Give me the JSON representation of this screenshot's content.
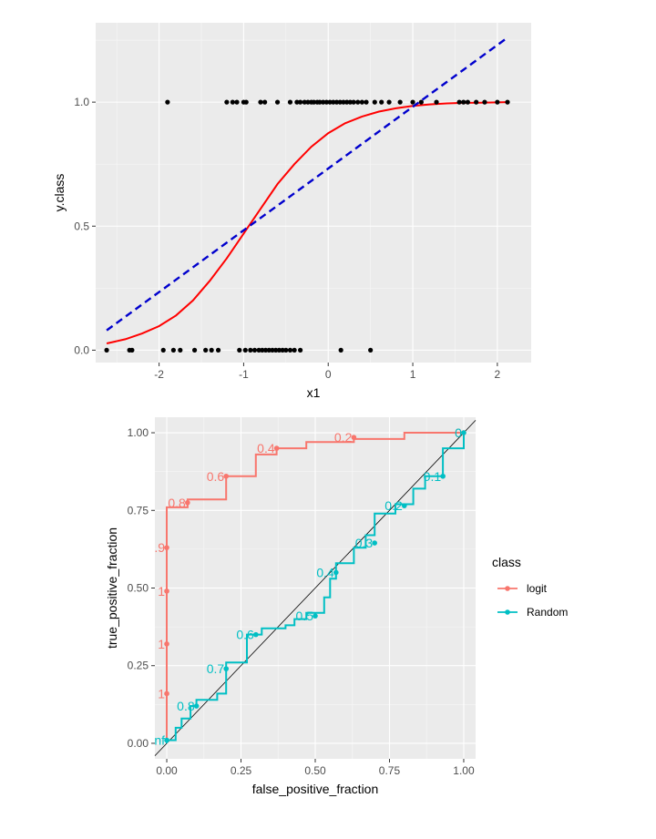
{
  "chart_data": [
    {
      "type": "scatter",
      "xlabel": "x1",
      "ylabel": "y.class",
      "xlim": [
        -2.75,
        2.4
      ],
      "ylim": [
        -0.05,
        1.32
      ],
      "x_ticks": [
        -2,
        -1,
        0,
        1,
        2
      ],
      "x_tick_labels": [
        "-2",
        "-1",
        "0",
        "1",
        "2"
      ],
      "y_ticks": [
        0,
        0.5,
        1
      ],
      "y_tick_labels": [
        "0.0",
        "0.5",
        "1.0"
      ],
      "grid": true,
      "points": {
        "color": "#000000",
        "class1_x": [
          -1.9,
          -1.2,
          -1.13,
          -1.08,
          -1.0,
          -0.97,
          -0.8,
          -0.75,
          -0.6,
          -0.45,
          -0.37,
          -0.33,
          -0.28,
          -0.24,
          -0.2,
          -0.17,
          -0.13,
          -0.1,
          -0.06,
          -0.02,
          0.02,
          0.06,
          0.1,
          0.14,
          0.18,
          0.22,
          0.26,
          0.3,
          0.35,
          0.4,
          0.45,
          0.55,
          0.63,
          0.72,
          0.85,
          1.0,
          1.1,
          1.28,
          1.55,
          1.6,
          1.65,
          1.75,
          1.85,
          2.0,
          2.12
        ],
        "class0_x": [
          -2.62,
          -2.35,
          -2.32,
          -1.95,
          -1.83,
          -1.75,
          -1.58,
          -1.45,
          -1.38,
          -1.3,
          -1.05,
          -0.98,
          -0.92,
          -0.87,
          -0.82,
          -0.78,
          -0.74,
          -0.7,
          -0.66,
          -0.62,
          -0.58,
          -0.54,
          -0.5,
          -0.45,
          -0.4,
          -0.33,
          0.15,
          0.5
        ]
      },
      "series": [
        {
          "type": "line",
          "color": "#ff0000",
          "style": "solid",
          "x": [
            -2.62,
            -2.4,
            -2.2,
            -2.0,
            -1.8,
            -1.6,
            -1.4,
            -1.2,
            -1.0,
            -0.8,
            -0.6,
            -0.4,
            -0.2,
            0.0,
            0.2,
            0.4,
            0.6,
            0.8,
            1.0,
            1.2,
            1.4,
            1.6,
            1.8,
            2.0,
            2.12
          ],
          "y": [
            0.027,
            0.044,
            0.067,
            0.097,
            0.14,
            0.2,
            0.28,
            0.37,
            0.47,
            0.57,
            0.67,
            0.75,
            0.82,
            0.875,
            0.915,
            0.942,
            0.962,
            0.975,
            0.985,
            0.991,
            0.995,
            0.997,
            0.998,
            0.999,
            1.0
          ]
        },
        {
          "type": "line",
          "color": "#0000cd",
          "style": "dashed",
          "x": [
            -2.62,
            2.12
          ],
          "y": [
            0.08,
            1.26
          ]
        }
      ]
    },
    {
      "type": "line",
      "title": "",
      "xlabel": "false_positive_fraction",
      "ylabel": "true_positive_fraction",
      "xlim": [
        -0.04,
        1.04
      ],
      "ylim": [
        -0.05,
        1.05
      ],
      "x_ticks": [
        0,
        0.25,
        0.5,
        0.75,
        1.0
      ],
      "x_tick_labels": [
        "0.00",
        "0.25",
        "0.50",
        "0.75",
        "1.00"
      ],
      "y_ticks": [
        0,
        0.25,
        0.5,
        0.75,
        1.0
      ],
      "y_tick_labels": [
        "0.00",
        "0.25",
        "0.50",
        "0.75",
        "1.00"
      ],
      "grid": true,
      "legend": {
        "title": "class",
        "position": "right"
      },
      "diagonal": {
        "x": [
          -0.04,
          1.04
        ],
        "y": [
          -0.04,
          1.04
        ],
        "color": "#000000"
      },
      "series": [
        {
          "name": "logit",
          "color": "#f8766d",
          "step_points": [
            [
              0,
              0
            ],
            [
              0,
              0.16
            ],
            [
              0,
              0.32
            ],
            [
              0,
              0.47
            ],
            [
              0,
              0.63
            ],
            [
              0,
              0.76
            ],
            [
              0.07,
              0.76
            ],
            [
              0.07,
              0.785
            ],
            [
              0.2,
              0.785
            ],
            [
              0.2,
              0.86
            ],
            [
              0.3,
              0.86
            ],
            [
              0.3,
              0.93
            ],
            [
              0.37,
              0.93
            ],
            [
              0.37,
              0.95
            ],
            [
              0.47,
              0.95
            ],
            [
              0.47,
              0.97
            ],
            [
              0.63,
              0.97
            ],
            [
              0.63,
              0.98
            ],
            [
              0.8,
              0.98
            ],
            [
              0.8,
              1.0
            ],
            [
              1.0,
              1.0
            ]
          ],
          "cut_points": [
            {
              "x": 0,
              "y": 0.16,
              "label": "1"
            },
            {
              "x": 0,
              "y": 0.32,
              "label": "1"
            },
            {
              "x": 0,
              "y": 0.49,
              "label": "1"
            },
            {
              "x": 0,
              "y": 0.63,
              "label": ".9"
            },
            {
              "x": 0.07,
              "y": 0.775,
              "label": "0.8"
            },
            {
              "x": 0.2,
              "y": 0.86,
              "label": "0.6"
            },
            {
              "x": 0.37,
              "y": 0.95,
              "label": "0.4"
            },
            {
              "x": 0.63,
              "y": 0.985,
              "label": "0.2"
            },
            {
              "x": 1.0,
              "y": 1.0,
              "label": "0"
            }
          ]
        },
        {
          "name": "Random",
          "color": "#00bfc4",
          "step_points": [
            [
              0,
              0
            ],
            [
              0,
              0.01
            ],
            [
              0.03,
              0.01
            ],
            [
              0.03,
              0.05
            ],
            [
              0.05,
              0.05
            ],
            [
              0.05,
              0.08
            ],
            [
              0.08,
              0.08
            ],
            [
              0.08,
              0.12
            ],
            [
              0.1,
              0.12
            ],
            [
              0.1,
              0.14
            ],
            [
              0.17,
              0.14
            ],
            [
              0.17,
              0.16
            ],
            [
              0.2,
              0.16
            ],
            [
              0.2,
              0.26
            ],
            [
              0.27,
              0.26
            ],
            [
              0.27,
              0.35
            ],
            [
              0.32,
              0.35
            ],
            [
              0.32,
              0.37
            ],
            [
              0.4,
              0.37
            ],
            [
              0.4,
              0.38
            ],
            [
              0.43,
              0.38
            ],
            [
              0.43,
              0.4
            ],
            [
              0.47,
              0.4
            ],
            [
              0.47,
              0.42
            ],
            [
              0.53,
              0.42
            ],
            [
              0.53,
              0.47
            ],
            [
              0.55,
              0.47
            ],
            [
              0.55,
              0.53
            ],
            [
              0.57,
              0.53
            ],
            [
              0.57,
              0.58
            ],
            [
              0.63,
              0.58
            ],
            [
              0.63,
              0.63
            ],
            [
              0.67,
              0.63
            ],
            [
              0.67,
              0.67
            ],
            [
              0.7,
              0.67
            ],
            [
              0.7,
              0.74
            ],
            [
              0.77,
              0.74
            ],
            [
              0.77,
              0.77
            ],
            [
              0.83,
              0.77
            ],
            [
              0.83,
              0.82
            ],
            [
              0.87,
              0.82
            ],
            [
              0.87,
              0.86
            ],
            [
              0.93,
              0.86
            ],
            [
              0.93,
              0.95
            ],
            [
              1.0,
              0.95
            ],
            [
              1.0,
              1.0
            ]
          ],
          "cut_points": [
            {
              "x": 0,
              "y": 0.01,
              "label": "nf"
            },
            {
              "x": 0.1,
              "y": 0.12,
              "label": "0.8"
            },
            {
              "x": 0.2,
              "y": 0.24,
              "label": "0.7"
            },
            {
              "x": 0.3,
              "y": 0.35,
              "label": "0.6"
            },
            {
              "x": 0.5,
              "y": 0.41,
              "label": "0.5"
            },
            {
              "x": 0.57,
              "y": 0.55,
              "label": "0.4"
            },
            {
              "x": 0.7,
              "y": 0.645,
              "label": "0.3"
            },
            {
              "x": 0.8,
              "y": 0.765,
              "label": "0.2"
            },
            {
              "x": 0.93,
              "y": 0.86,
              "label": "0.1"
            },
            {
              "x": 1.0,
              "y": 1.0,
              "label": "0"
            }
          ]
        }
      ]
    }
  ]
}
